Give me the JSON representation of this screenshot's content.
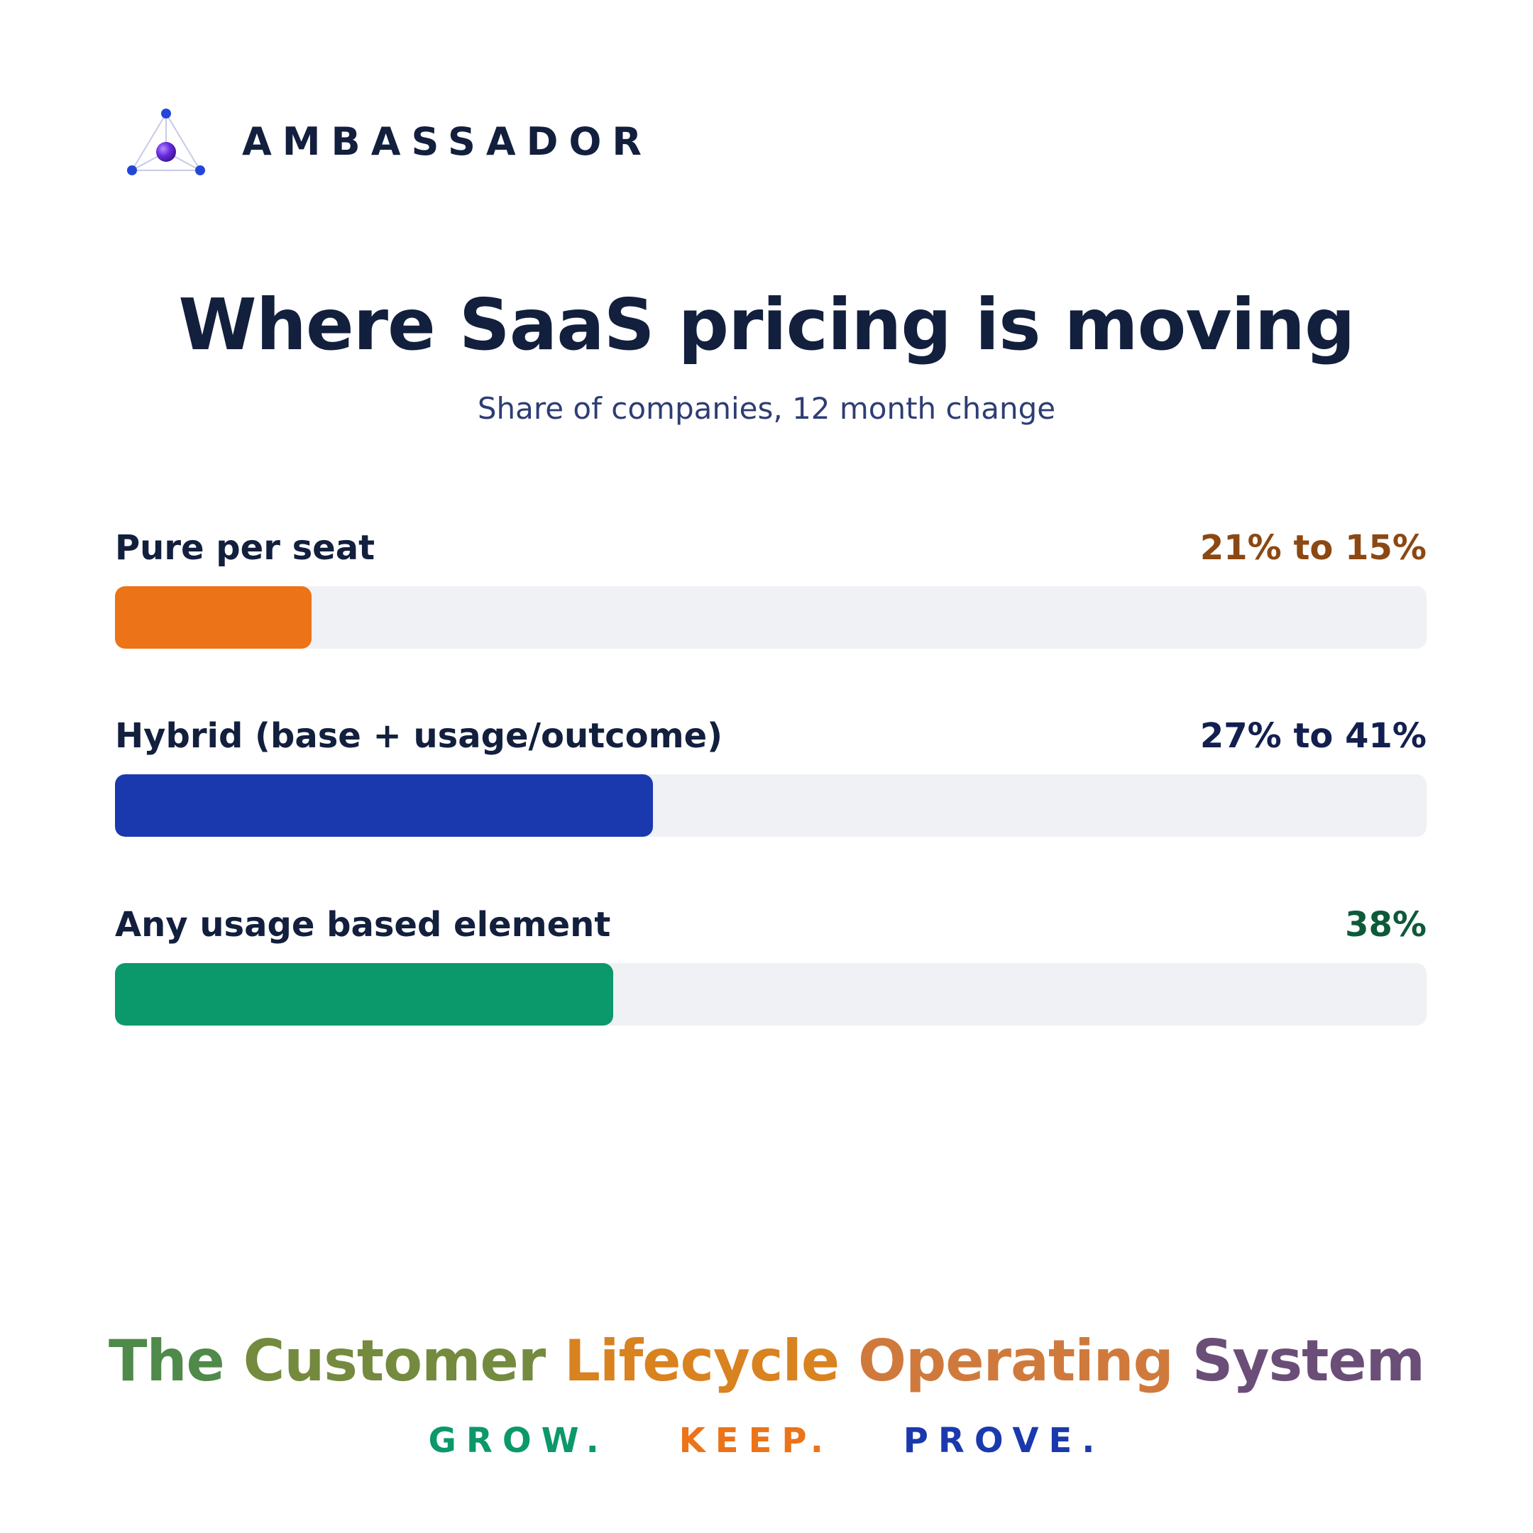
{
  "brand": {
    "name": "AMBASSADOR",
    "logo_icon": "triangle-node-logo-icon"
  },
  "chart_data": {
    "type": "bar",
    "orientation": "horizontal",
    "title": "Where SaaS pricing is moving",
    "subtitle": "Share of companies, 12 month change",
    "xlim": [
      0,
      100
    ],
    "grid": false,
    "bars": [
      {
        "label": "Pure per seat",
        "value_text": "21% to 15%",
        "from": 21,
        "value": 15,
        "color": "#ec7318",
        "text_color": "#8c4812"
      },
      {
        "label": "Hybrid (base + usage/outcome)",
        "value_text": "27% to 41%",
        "from": 27,
        "value": 41,
        "color": "#1b39ae",
        "text_color": "#121f4f"
      },
      {
        "label": "Any usage based element",
        "value_text": "38%",
        "value": 38,
        "color": "#0b986b",
        "text_color": "#0d5a3a"
      }
    ]
  },
  "footer": {
    "tagline_words": [
      {
        "text": "The",
        "color": "#4f8a4a"
      },
      {
        "text": "Customer",
        "color": "#748a3e"
      },
      {
        "text": "Lifecycle",
        "color": "#d98220"
      },
      {
        "text": "Operating",
        "color": "#cf7a3c"
      },
      {
        "text": "System",
        "color": "#6a4e78"
      }
    ],
    "motto": [
      {
        "text": "GROW.",
        "color": "#0b986b"
      },
      {
        "text": "KEEP.",
        "color": "#ec7318"
      },
      {
        "text": "PROVE.",
        "color": "#1b39ae"
      }
    ]
  }
}
